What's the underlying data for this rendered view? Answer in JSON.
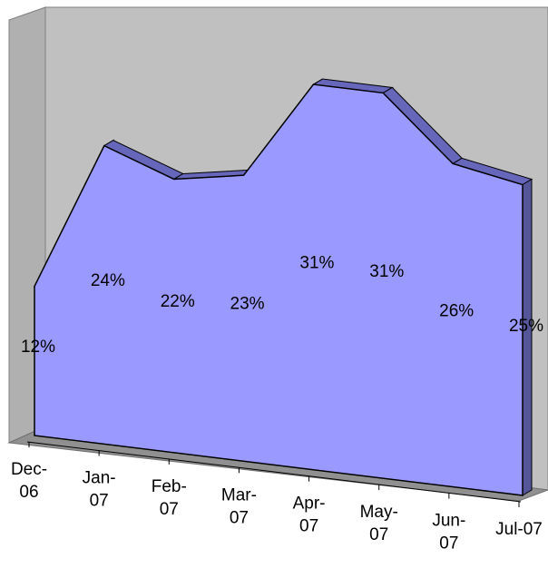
{
  "chart_data": {
    "type": "area3d",
    "categories": [
      "Dec-06",
      "Jan-07",
      "Feb-07",
      "Mar-07",
      "Apr-07",
      "May-07",
      "Jun-07",
      "Jul-07"
    ],
    "values": [
      12,
      24,
      22,
      23,
      31,
      31,
      26,
      25
    ],
    "value_labels": [
      "12%",
      "24%",
      "22%",
      "23%",
      "31%",
      "31%",
      "26%",
      "25%"
    ],
    "color": "#9999ff"
  }
}
